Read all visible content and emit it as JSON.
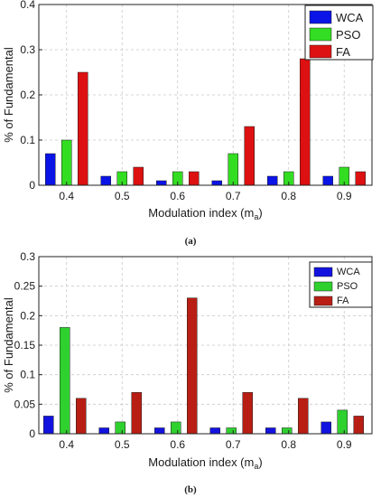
{
  "chart_data": [
    {
      "type": "bar",
      "caption": "(a)",
      "categories": [
        "0.4",
        "0.5",
        "0.6",
        "0.7",
        "0.8",
        "0.9"
      ],
      "series": [
        {
          "name": "WCA",
          "color": "#0a14e6",
          "values": [
            0.07,
            0.02,
            0.01,
            0.01,
            0.02,
            0.02
          ]
        },
        {
          "name": "PSO",
          "color": "#33dd22",
          "values": [
            0.1,
            0.03,
            0.03,
            0.07,
            0.03,
            0.04
          ]
        },
        {
          "name": "FA",
          "color": "#dd1111",
          "values": [
            0.25,
            0.04,
            0.03,
            0.13,
            0.28,
            0.03
          ]
        }
      ],
      "xlabel_prefix": "Modulation index (m",
      "xlabel_sub": "a",
      "xlabel_suffix": ")",
      "ylabel": "% of Fundamental",
      "ylim": [
        0,
        0.4
      ],
      "yticks": [
        "0",
        "0.1",
        "0.2",
        "0.3",
        "0.4"
      ],
      "ytick_values": [
        0,
        0.1,
        0.2,
        0.3,
        0.4
      ],
      "grid": true,
      "legend_position": "top-right"
    },
    {
      "type": "bar",
      "caption": "(b)",
      "categories": [
        "0.4",
        "0.5",
        "0.6",
        "0.7",
        "0.8",
        "0.9"
      ],
      "series": [
        {
          "name": "WCA",
          "color": "#1313e0",
          "values": [
            0.03,
            0.01,
            0.01,
            0.01,
            0.01,
            0.02
          ]
        },
        {
          "name": "PSO",
          "color": "#2ed12e",
          "values": [
            0.18,
            0.02,
            0.02,
            0.01,
            0.01,
            0.04
          ]
        },
        {
          "name": "FA",
          "color": "#b81e14",
          "values": [
            0.06,
            0.07,
            0.23,
            0.07,
            0.06,
            0.03
          ]
        }
      ],
      "xlabel_prefix": "Modulation index (m",
      "xlabel_sub": "a",
      "xlabel_suffix": ")",
      "ylabel": "% of Fundamental",
      "ylim": [
        0,
        0.3
      ],
      "yticks": [
        "0",
        "0.05",
        "0.1",
        "0.15",
        "0.2",
        "0.25",
        "0.3"
      ],
      "ytick_values": [
        0,
        0.05,
        0.1,
        0.15,
        0.2,
        0.25,
        0.3
      ],
      "grid": true,
      "legend_position": "top-right"
    }
  ]
}
